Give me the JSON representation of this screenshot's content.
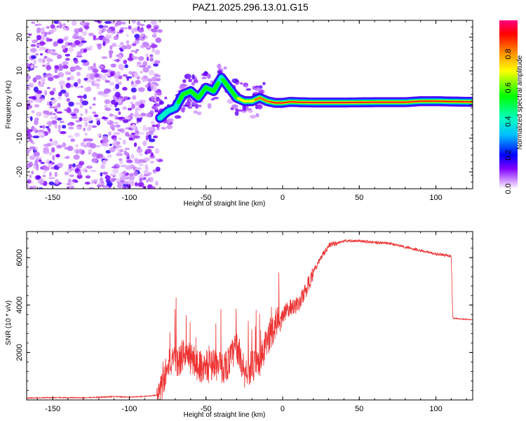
{
  "title": "PAZ1.2025.296.13.01.G15",
  "chart_data": [
    {
      "type": "heatmap",
      "xlabel": "Height of straight line (km)",
      "ylabel": "Frequency (Hz)",
      "xlim": [
        -167,
        124
      ],
      "ylim": [
        -25,
        25
      ],
      "x_ticks": [
        -150,
        -100,
        -50,
        0,
        50,
        100
      ],
      "y_ticks": [
        -20,
        -10,
        0,
        10,
        20
      ],
      "colorbar": {
        "label": "Normalized spectral amplitude",
        "range": [
          0,
          1
        ],
        "ticks": [
          0.0,
          0.2,
          0.4,
          0.6,
          0.8
        ],
        "tick_labels": [
          "0.0",
          "0.2",
          "0.4",
          "0.6",
          "0.8"
        ]
      },
      "ridge": {
        "x": [
          -80,
          -75,
          -70,
          -65,
          -60,
          -55,
          -50,
          -45,
          -40,
          -35,
          -30,
          -25,
          -20,
          -15,
          -10,
          -5,
          0,
          5,
          10,
          20,
          40,
          60,
          80,
          90,
          100,
          110,
          124
        ],
        "y": [
          -4,
          -2,
          -1,
          3,
          4,
          2,
          5,
          4,
          8,
          5,
          2,
          1,
          1,
          2,
          1,
          0.5,
          0.5,
          0.8,
          0.7,
          0.6,
          0.6,
          0.7,
          0.7,
          1.0,
          1.0,
          0.9,
          0.8
        ],
        "amplitude": [
          0.35,
          0.4,
          0.45,
          0.5,
          0.5,
          0.55,
          0.55,
          0.5,
          0.45,
          0.55,
          0.6,
          0.7,
          0.75,
          0.8,
          0.85,
          0.9,
          0.9,
          0.95,
          0.95,
          0.95,
          0.95,
          0.95,
          0.95,
          0.9,
          0.9,
          0.95,
          0.95
        ]
      },
      "noise_region_x": [
        -167,
        -80
      ],
      "noise_amplitude": [
        0.0,
        0.2
      ]
    },
    {
      "type": "line",
      "xlabel": "Height of straight line (km)",
      "ylabel": "SNR (10 * v/v)",
      "xlim": [
        -167,
        124
      ],
      "ylim": [
        0,
        7100
      ],
      "x_ticks": [
        -150,
        -100,
        -50,
        0,
        50,
        100
      ],
      "y_ticks": [
        2000,
        4000,
        6000
      ],
      "color": "#ee3333",
      "x": [
        -167,
        -150,
        -130,
        -110,
        -100,
        -90,
        -82,
        -78,
        -75,
        -72,
        -68,
        -64,
        -60,
        -55,
        -50,
        -45,
        -40,
        -35,
        -30,
        -25,
        -20,
        -15,
        -10,
        -5,
        0,
        5,
        10,
        15,
        20,
        25,
        30,
        40,
        50,
        60,
        70,
        80,
        90,
        100,
        108,
        110,
        111,
        115,
        124
      ],
      "y": [
        80,
        100,
        90,
        140,
        120,
        150,
        200,
        600,
        1700,
        1500,
        1600,
        2000,
        1700,
        1500,
        1300,
        1600,
        1300,
        1600,
        2300,
        1200,
        1400,
        1500,
        2500,
        3200,
        3600,
        3900,
        4000,
        4600,
        5400,
        6000,
        6500,
        6700,
        6700,
        6650,
        6600,
        6450,
        6300,
        6150,
        6100,
        6050,
        3450,
        3420,
        3380
      ]
    }
  ]
}
